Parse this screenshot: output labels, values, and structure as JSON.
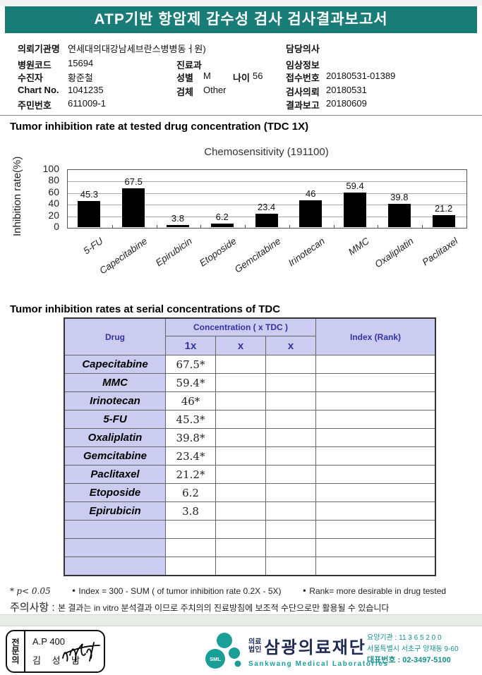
{
  "header": {
    "title": "ATP기반 항암제 감수성 검사 검사결과보고서"
  },
  "patient_info": {
    "left": [
      {
        "label": "의뢰기관명",
        "value": "연세대의대강남세브란스병병동ㅓ원)"
      },
      {
        "label": "병원코드",
        "value": "15694"
      },
      {
        "label": "수진자",
        "value": "황준철"
      },
      {
        "label": "Chart No.",
        "value": "1041235"
      },
      {
        "label": "주민번호",
        "value": "611009-1"
      }
    ],
    "middle": {
      "dept_label": "진료과",
      "dept_value": "",
      "sex_label": "성별",
      "sex_value": "M",
      "age_label": "나이",
      "age_value": "56",
      "specimen_label": "검체",
      "specimen_value": "Other"
    },
    "right": [
      {
        "label": "담당의사",
        "value": ""
      },
      {
        "label": "임상정보",
        "value": ""
      },
      {
        "label": "접수번호",
        "value": "20180531-01389"
      },
      {
        "label": "검사의뢰",
        "value": "20180531"
      },
      {
        "label": "결과보고",
        "value": "20180609"
      }
    ]
  },
  "sections": {
    "chart_title": "Tumor inhibition rate at tested drug concentration (TDC 1X)",
    "table_title": "Tumor inhibition rates at serial concentrations of TDC"
  },
  "chart_data": {
    "type": "bar",
    "title": "Chemosensitivity (191100)",
    "ylabel": "Inhibition rate(%)",
    "categories": [
      "5-FU",
      "Capecitabine",
      "Epirubicin",
      "Etoposide",
      "Gemcitabine",
      "Irinotecan",
      "MMC",
      "Oxaliplatin",
      "Paclitaxel"
    ],
    "values": [
      45.3,
      67.5,
      3.8,
      6.2,
      23.4,
      46,
      59.4,
      39.8,
      21.2
    ],
    "value_labels": [
      "45.3",
      "67.5",
      "3.8",
      "6.2",
      "23.4",
      "46",
      "59.4",
      "39.8",
      "21.2"
    ],
    "ylim": [
      0,
      100
    ],
    "ytick_step": 20,
    "grid": true,
    "bar_color": "#000000",
    "legend": null
  },
  "table": {
    "header": {
      "drug": "Drug",
      "concentration": "Concentration ( x TDC )",
      "sub": [
        "1x",
        "x",
        "x"
      ],
      "index": "Index (Rank)"
    },
    "rows": [
      {
        "drug": "Capecitabine",
        "c1": "67.5*",
        "c2": "",
        "c3": "",
        "index": ""
      },
      {
        "drug": "MMC",
        "c1": "59.4*",
        "c2": "",
        "c3": "",
        "index": ""
      },
      {
        "drug": "Irinotecan",
        "c1": "46*",
        "c2": "",
        "c3": "",
        "index": ""
      },
      {
        "drug": "5-FU",
        "c1": "45.3*",
        "c2": "",
        "c3": "",
        "index": ""
      },
      {
        "drug": "Oxaliplatin",
        "c1": "39.8*",
        "c2": "",
        "c3": "",
        "index": ""
      },
      {
        "drug": "Gemcitabine",
        "c1": "23.4*",
        "c2": "",
        "c3": "",
        "index": ""
      },
      {
        "drug": "Paclitaxel",
        "c1": "21.2*",
        "c2": "",
        "c3": "",
        "index": ""
      },
      {
        "drug": "Etoposide",
        "c1": "6.2",
        "c2": "",
        "c3": "",
        "index": ""
      },
      {
        "drug": "Epirubicin",
        "c1": "3.8",
        "c2": "",
        "c3": "",
        "index": ""
      },
      {
        "drug": "",
        "c1": "",
        "c2": "",
        "c3": "",
        "index": ""
      },
      {
        "drug": "",
        "c1": "",
        "c2": "",
        "c3": "",
        "index": ""
      },
      {
        "drug": "",
        "c1": "",
        "c2": "",
        "c3": "",
        "index": ""
      }
    ]
  },
  "notes": {
    "p_marker": "*",
    "p_text": "p< 0.05",
    "bullet": "•",
    "index_note": "Index = 300 - SUM ( of tumor inhibition rate 0.2X  -  5X)",
    "rank_note": "Rank= more desirable in drug tested",
    "caution_label": "주의사항 :",
    "caution_text": "본 결과는 in vitro 분석결과 이므로 주치의의 진료방침에 보조적 수단으로만 활용될 수 있습니다"
  },
  "footer": {
    "specialist_box": {
      "vertical_label": [
        "전",
        "문",
        "의"
      ],
      "code": "A.P 400",
      "name": "김 성 남"
    },
    "lab": {
      "logo_text": "SML",
      "corp_type_line1": "의료",
      "corp_type_line2": "법인",
      "name_kr": "삼광의료재단",
      "name_en": "Sankwang Medical Laboratories",
      "org_number": "요양기관 : 11 3 6 5 2 0 0",
      "address": "서울특별시 서초구 양재동 9-60",
      "phone": "대표번호 : 02-3497-5100"
    },
    "colors": {
      "banner_teal": "#1a7c77",
      "logo_teal": "#1a9e98",
      "table_lavender": "#ccccf0",
      "table_navy": "#3333a0"
    }
  }
}
